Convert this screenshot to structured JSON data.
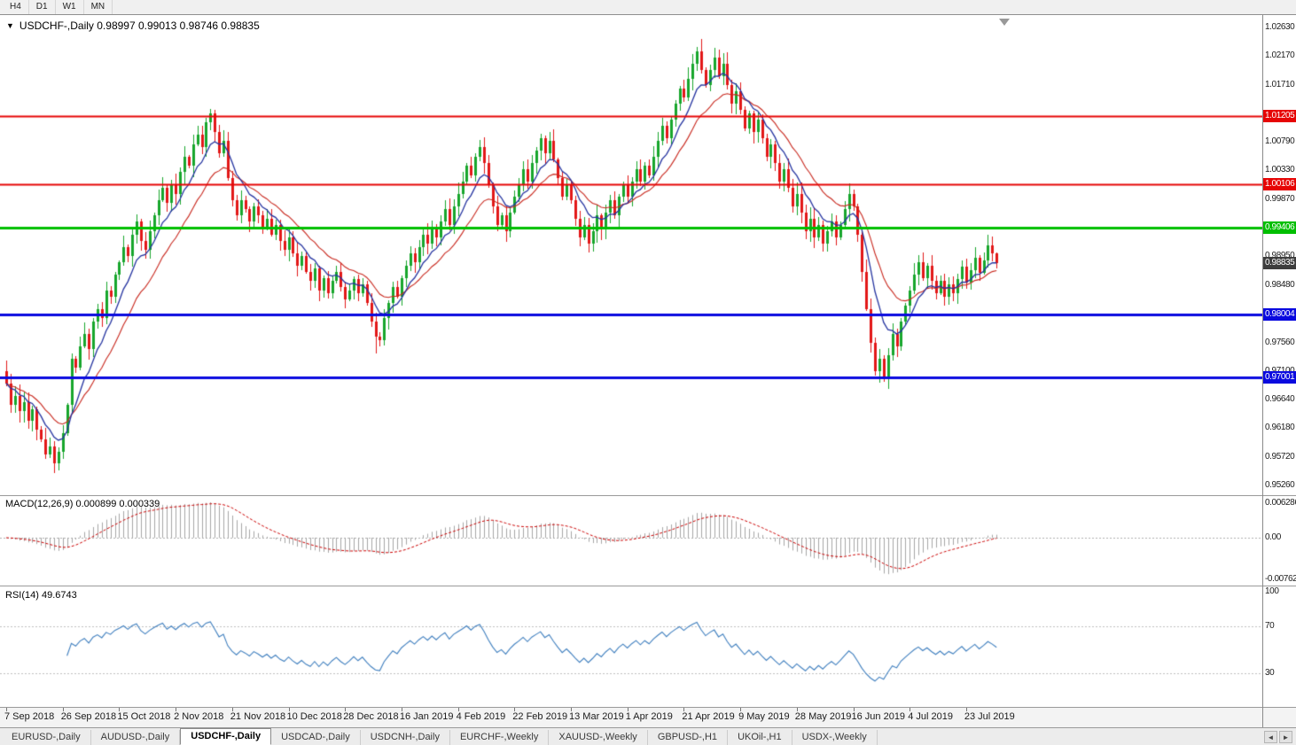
{
  "toolbar": {
    "timeframes": [
      "H4",
      "D1",
      "W1",
      "MN"
    ]
  },
  "icons": {
    "collapse": "▼",
    "tab_left": "◄",
    "tab_right": "►"
  },
  "chart": {
    "title_text": "USDCHF-,Daily 0.98997 0.99013 0.98746 0.98835",
    "symbol": "USDCHF-",
    "period": "Daily",
    "ohlc": {
      "open": "0.98997",
      "high": "0.99013",
      "low": "0.98746",
      "close": "0.98835"
    },
    "colors": {
      "background": "#ffffff",
      "up": "#17a62c",
      "down": "#e21717",
      "ma_fast": "#2433a0",
      "ma_slow": "#c9281e",
      "macd_hist": "#a6a6a6",
      "macd_signal": "#cc0000",
      "rsi": "#3f7fbf"
    }
  },
  "macd": {
    "label_text": "MACD(12,26,9) 0.000899 0.000339",
    "fast": 12,
    "slow": 26,
    "signal": 9,
    "current_macd": 0.000899,
    "current_signal": 0.000339,
    "axis": [
      "0.006286",
      "0.00",
      "-0.00762"
    ]
  },
  "rsi": {
    "label_text": "RSI(14) 49.6743",
    "period": 14,
    "current": 49.6743,
    "levels": [
      70,
      30
    ],
    "axis": [
      "100",
      "70",
      "30"
    ]
  },
  "tabs": {
    "active_index": 2,
    "items": [
      "EURUSD-,Daily",
      "AUDUSD-,Daily",
      "USDCHF-,Daily",
      "USDCAD-,Daily",
      "USDCNH-,Daily",
      "EURCHF-,Weekly",
      "XAUUSD-,Weekly",
      "GBPUSD-,H1",
      "UKOil-,H1",
      "USDX-,Weekly"
    ]
  },
  "chart_data": {
    "type": "candlestick",
    "symbol": "USDCHF",
    "timeframe": "Daily",
    "price_axis": {
      "top": 1.0283,
      "bottom": 0.951,
      "tick_labels": [
        "1.02630",
        "1.02170",
        "1.01710",
        "1.00790",
        "1.00330",
        "0.99870",
        "0.98950",
        "0.98480",
        "0.97560",
        "0.97100",
        "0.96640",
        "0.96180",
        "0.95720",
        "0.95260"
      ]
    },
    "x_axis": {
      "labels": [
        "7 Sep 2018",
        "26 Sep 2018",
        "15 Oct 2018",
        "2 Nov 2018",
        "21 Nov 2018",
        "10 Dec 2018",
        "28 Dec 2018",
        "16 Jan 2019",
        "4 Feb 2019",
        "22 Feb 2019",
        "13 Mar 2019",
        "1 Apr 2019",
        "21 Apr 2019",
        "9 May 2019",
        "28 May 2019",
        "16 Jun 2019",
        "4 Jul 2019",
        "23 Jul 2019"
      ],
      "candles_per_label": 13
    },
    "hlines": [
      {
        "price": 1.01205,
        "label": "1.01205",
        "color": "#e60505",
        "width": 2
      },
      {
        "price": 1.00106,
        "label": "1.00106",
        "color": "#e60505",
        "width": 2
      },
      {
        "price": 0.99406,
        "label": "0.99406",
        "color": "#00bf00",
        "width": 3
      },
      {
        "price": 0.98004,
        "label": "0.98004",
        "color": "#0a0adf",
        "width": 3
      },
      {
        "price": 0.97001,
        "label": "0.97001",
        "color": "#0a0adf",
        "width": 3
      }
    ],
    "current_price": {
      "value": 0.98835,
      "label": "0.98835",
      "bg": "#3d3d3d"
    },
    "overlays": {
      "ma_fast_period": 8,
      "ma_slow_period": 17
    },
    "first_open": 0.971,
    "wick_overrides": {
      "47": {
        "high": 1.0132
      },
      "85": {
        "low": 0.9738
      },
      "159": {
        "high": 1.0232
      },
      "194": {
        "high": 1.0012
      },
      "202": {
        "low": 0.9693
      },
      "226": {
        "high": 0.993
      },
      "228": {
        "high": 0.99013,
        "low": 0.98746
      }
    },
    "closes": [
      0.969,
      0.9655,
      0.967,
      0.9645,
      0.966,
      0.963,
      0.9648,
      0.9615,
      0.96,
      0.9575,
      0.9588,
      0.9562,
      0.958,
      0.961,
      0.9655,
      0.973,
      0.9715,
      0.975,
      0.977,
      0.9745,
      0.979,
      0.981,
      0.9795,
      0.984,
      0.983,
      0.9865,
      0.9885,
      0.991,
      0.9895,
      0.993,
      0.995,
      0.992,
      0.9905,
      0.9935,
      0.996,
      0.9985,
      1.0005,
      0.998,
      1.001,
      0.9995,
      1.003,
      1.0055,
      1.004,
      1.0075,
      1.009,
      1.007,
      1.011,
      1.0125,
      1.0095,
      1.006,
      1.008,
      1.002,
      0.9985,
      0.996,
      0.9985,
      0.997,
      0.995,
      0.9975,
      0.996,
      0.994,
      0.9955,
      0.993,
      0.9945,
      0.992,
      0.9905,
      0.9925,
      0.99,
      0.988,
      0.9895,
      0.987,
      0.9855,
      0.9875,
      0.984,
      0.986,
      0.9835,
      0.9855,
      0.987,
      0.9845,
      0.9825,
      0.984,
      0.9858,
      0.9835,
      0.985,
      0.982,
      0.979,
      0.9765,
      0.976,
      0.9795,
      0.982,
      0.9845,
      0.983,
      0.986,
      0.988,
      0.99,
      0.9885,
      0.991,
      0.993,
      0.9915,
      0.994,
      0.9925,
      0.995,
      0.997,
      0.9945,
      0.9975,
      0.9995,
      1.0015,
      1.004,
      1.0025,
      1.0055,
      1.007,
      1.0045,
      1.001,
      0.9975,
      0.9945,
      0.996,
      0.9935,
      0.9965,
      0.999,
      1.001,
      1.0035,
      1.0015,
      1.0045,
      1.0065,
      1.0085,
      1.006,
      1.008,
      1.005,
      1.002,
      0.999,
      1.001,
      0.9985,
      0.9955,
      0.9925,
      0.9945,
      0.9915,
      0.9935,
      0.996,
      0.994,
      0.9965,
      0.9985,
      0.996,
      0.999,
      1.001,
      0.999,
      1.0015,
      1.0035,
      1.0015,
      1.004,
      1.0025,
      1.0055,
      1.008,
      1.0105,
      1.0085,
      1.0115,
      1.014,
      1.0165,
      1.015,
      1.018,
      1.0205,
      1.0225,
      1.0195,
      1.017,
      1.0195,
      1.0215,
      1.0185,
      1.0205,
      1.017,
      1.014,
      1.016,
      1.013,
      1.01,
      1.0125,
      1.0095,
      1.0115,
      1.0085,
      1.0055,
      1.0075,
      1.0045,
      1.0015,
      1.0035,
      1.0005,
      0.9975,
      0.9995,
      0.9965,
      0.9935,
      0.9955,
      0.9925,
      0.9945,
      0.9915,
      0.9935,
      0.995,
      0.9925,
      0.9945,
      0.997,
      0.9995,
      0.9975,
      0.993,
      0.987,
      0.981,
      0.9755,
      0.971,
      0.973,
      0.9698,
      0.9735,
      0.977,
      0.975,
      0.979,
      0.9815,
      0.984,
      0.9865,
      0.9885,
      0.986,
      0.988,
      0.9855,
      0.9835,
      0.9855,
      0.983,
      0.985,
      0.9835,
      0.9858,
      0.9878,
      0.9852,
      0.9872,
      0.9892,
      0.9868,
      0.9888,
      0.9912,
      0.98997,
      0.98835
    ]
  }
}
